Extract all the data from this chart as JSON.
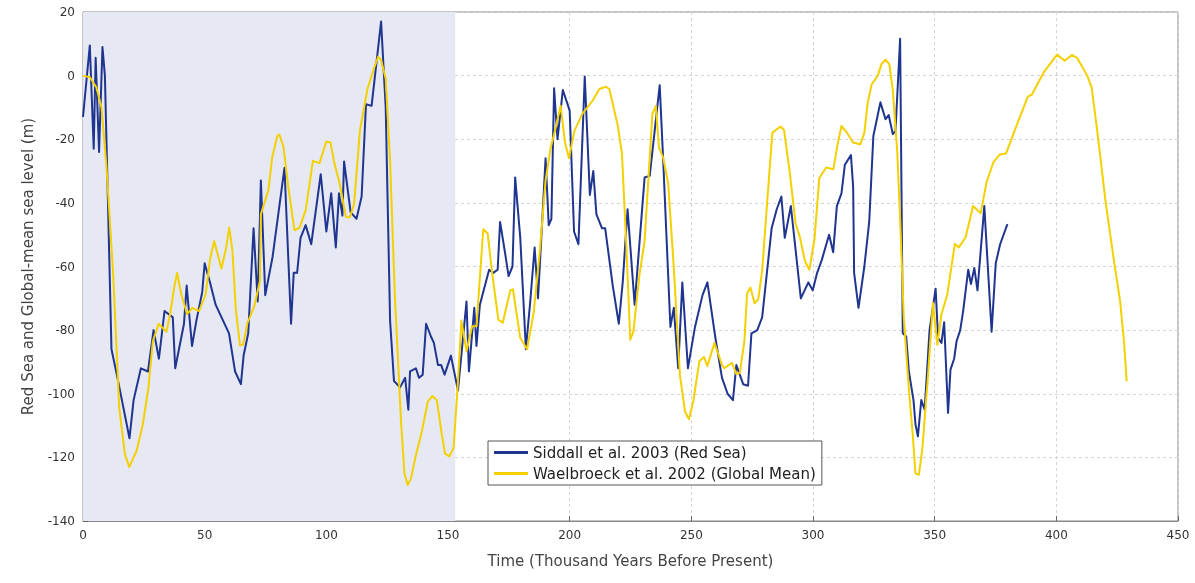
{
  "chart_data": {
    "type": "line",
    "xlabel": "Time (Thousand Years Before Present)",
    "ylabel": "Red Sea and Global-mean sea level (m)",
    "xlim": [
      0,
      450
    ],
    "xticks": [
      0,
      50,
      100,
      150,
      200,
      250,
      300,
      350,
      400,
      450
    ],
    "ylim": [
      -140,
      20
    ],
    "yticks": [
      -140,
      -120,
      -100,
      -80,
      -60,
      -40,
      -20,
      0,
      20
    ],
    "grid": true,
    "legend": "bottom",
    "marker": "none",
    "line_style": "solid",
    "bands": [
      {
        "axis": "x",
        "from": 0,
        "to": 153,
        "color": "#e6e9f3"
      }
    ],
    "series": [
      {
        "name": "Siddall et al. 2003 (Red Sea)",
        "color": "#1f3590",
        "x": [
          0,
          2.8,
          4.4,
          5.2,
          6.6,
          8,
          9,
          11.7,
          13.9,
          19.1,
          20.8,
          23.8,
          26.7,
          29,
          31.2,
          33.5,
          36.9,
          37.9,
          41.5,
          42.6,
          44.8,
          46.6,
          49,
          50,
          52.2,
          54.5,
          60,
          62.5,
          64.9,
          66,
          67.9,
          70.1,
          71.8,
          73.1,
          74.9,
          77.9,
          82.8,
          85.5,
          86.6,
          88,
          89.4,
          91.5,
          93.8,
          97.7,
          100,
          102,
          103.9,
          105.2,
          106.6,
          107.3,
          110,
          112.4,
          114.5,
          116.3,
          118.6,
          122.5,
          124.4,
          126.2,
          127.8,
          130.3,
          132.4,
          133.7,
          134.4,
          136.8,
          138.1,
          139.6,
          141,
          143,
          144.2,
          145.9,
          147.2,
          148.6,
          151.2,
          154.1,
          157.6,
          158.6,
          160.8,
          161.7,
          163.1,
          166.9,
          168.6,
          170.4,
          171.4,
          173.5,
          174.9,
          176.5,
          177.6,
          179.7,
          182,
          183.8,
          185.6,
          187,
          190.1,
          191.4,
          192.5,
          193.6,
          195,
          197.2,
          200,
          201.8,
          203.6,
          206.2,
          208.3,
          209.7,
          211,
          213.3,
          214.6,
          217.7,
          220.2,
          221.8,
          223.8,
          226.7,
          230.8,
          232.9,
          237,
          238.4,
          241.4,
          242.8,
          244.6,
          246.3,
          248.6,
          251.5,
          254.6,
          256.6,
          259.8,
          262.6,
          264.9,
          267.1,
          268.5,
          271.3,
          273.3,
          274.7,
          277.1,
          279.1,
          283,
          285.1,
          287,
          288.4,
          290.9,
          295,
          298.1,
          299.9,
          301.7,
          303.6,
          306.6,
          308.3,
          309.8,
          311.7,
          313.1,
          315.6,
          316.5,
          316.9,
          318.7,
          321.1,
          323.1,
          324.8,
          327.7,
          329.8,
          331.1,
          332.8,
          333.9,
          335.8,
          336.9,
          338.3,
          339.4,
          341.3,
          342.1,
          343.1,
          344.5,
          345.9,
          347.9,
          350.4,
          351.4,
          352.8,
          353.9,
          355.5,
          356.5,
          358,
          359,
          360.5,
          361.7,
          363.8,
          364.9,
          366.3,
          367.6,
          370.4,
          373.4,
          375.1,
          376.9,
          379.9
        ],
        "values": [
          -13,
          9.5,
          -23,
          5.6,
          -24,
          9,
          0,
          -86,
          -94,
          -114,
          -102,
          -92,
          -93,
          -80,
          -89,
          -74,
          -76,
          -92,
          -78,
          -66,
          -85,
          -77,
          -68,
          -59,
          -65,
          -72,
          -81,
          -93,
          -97,
          -88,
          -81,
          -48,
          -71,
          -33,
          -69,
          -57,
          -29,
          -78,
          -62,
          -62,
          -51,
          -47,
          -53,
          -31,
          -49,
          -37,
          -54,
          -37,
          -44,
          -27,
          -43,
          -45,
          -38,
          -9,
          -9.5,
          17,
          -10,
          -77,
          -96,
          -98,
          -95,
          -105,
          -93,
          -92,
          -95,
          -94,
          -78,
          -82,
          -84,
          -91,
          -91,
          -94,
          -88,
          -99,
          -71,
          -93,
          -73,
          -85,
          -72,
          -61,
          -62,
          -61,
          -46,
          -56,
          -63,
          -60,
          -32,
          -51,
          -86,
          -71,
          -54,
          -70,
          -26,
          -47,
          -45,
          -4,
          -20,
          -4.5,
          -11,
          -49,
          -53,
          -0.3,
          -37.5,
          -30,
          -43.6,
          -48,
          -48,
          -66,
          -78,
          -65,
          -42,
          -72,
          -32,
          -31.5,
          -3,
          -26,
          -79,
          -73,
          -92,
          -65,
          -92,
          -79,
          -69,
          -65,
          -82,
          -95,
          -100,
          -102,
          -91,
          -97,
          -97.5,
          -81,
          -80,
          -76,
          -48,
          -42,
          -38,
          -51,
          -41,
          -70,
          -65,
          -67.5,
          -62,
          -58,
          -50,
          -55.5,
          -41,
          -37,
          -28,
          -25,
          -35,
          -62,
          -73,
          -60,
          -46,
          -19,
          -8.4,
          -13.7,
          -12.4,
          -18.4,
          -17.4,
          11.6,
          -81,
          -82,
          -93,
          -102,
          -109.5,
          -113.4,
          -102,
          -105,
          -80,
          -67,
          -82.5,
          -84,
          -77.5,
          -106,
          -92.4,
          -89,
          -83.5,
          -80,
          -74,
          -61,
          -65.5,
          -60.5,
          -67.5,
          -41,
          -80.5,
          -59,
          -53,
          -46.7
        ]
      },
      {
        "name": "Waelbroeck et al. 2002 (Global Mean)",
        "color": "#f5d000",
        "x": [
          0,
          2.8,
          5.5,
          7.6,
          9.6,
          12.4,
          14.9,
          17.2,
          19,
          22,
          24.5,
          26.9,
          28.7,
          31.1,
          34.3,
          35.9,
          37.6,
          38.7,
          40.4,
          42.8,
          44.9,
          47.7,
          50.4,
          52.2,
          53.9,
          56.9,
          58.7,
          60.1,
          61.4,
          62.8,
          64.5,
          65.8,
          67.6,
          70.4,
          72.7,
          73.1,
          76.2,
          77.7,
          79.8,
          80.7,
          82.4,
          84.2,
          86.9,
          89,
          91.5,
          94.5,
          97.2,
          100,
          101.7,
          103.4,
          105.5,
          108,
          109.6,
          111.4,
          113.8,
          116.9,
          119.3,
          121.3,
          122.5,
          124.4,
          126.2,
          128.2,
          130.7,
          132.1,
          133.4,
          134.8,
          136.5,
          139.2,
          141.7,
          143.6,
          145.4,
          147.5,
          148.8,
          150.5,
          152.3,
          154.1,
          155.5,
          157.6,
          159.9,
          161.7,
          164.5,
          166.3,
          168.2,
          170.7,
          172.5,
          175.6,
          176.7,
          179.7,
          182.5,
          185.2,
          187.6,
          190.1,
          192.1,
          193.9,
          196.3,
          198.1,
          199.7,
          202,
          205.2,
          209.4,
          212.2,
          214.9,
          216.3,
          219.8,
          221.5,
          223.2,
          224.9,
          226.2,
          228.7,
          230.8,
          234,
          235.4,
          236.7,
          238.4,
          240.5,
          242.8,
          245.3,
          247.4,
          249,
          250.8,
          253.3,
          255.2,
          256.6,
          259.5,
          262.6,
          263.5,
          266.7,
          268.5,
          269.9,
          271.8,
          272.9,
          274.3,
          276,
          277.5,
          279.1,
          281.2,
          283.3,
          286.7,
          288.1,
          290.2,
          292.9,
          294.6,
          296.7,
          298.5,
          300.6,
          302.6,
          305.4,
          308.4,
          310,
          311.7,
          313.9,
          316.5,
          319.4,
          321.1,
          322.5,
          324.1,
          326.6,
          328.2,
          329.8,
          331.4,
          332.8,
          334.6,
          335.9,
          337.3,
          339.3,
          341,
          342.1,
          343.5,
          344.9,
          347.2,
          349.3,
          351.1,
          352.8,
          355.2,
          358.3,
          359.9,
          362.7,
          365.8,
          368.9,
          371.3,
          374.1,
          376.6,
          379.3,
          383.5,
          388.3,
          389.9,
          394.8,
          400.3,
          403.4,
          406.4,
          408.5,
          412.7,
          414.5,
          416.8,
          420.2,
          423.7,
          426.2,
          427.8,
          428.9
        ],
        "values": [
          0,
          -0.5,
          -3.7,
          -10,
          -28,
          -62.5,
          -104.5,
          -119,
          -123,
          -118,
          -110,
          -98,
          -83.5,
          -78,
          -80.5,
          -74.5,
          -66,
          -62,
          -68.8,
          -75,
          -73,
          -74,
          -68.8,
          -57.8,
          -52,
          -60.6,
          -54.6,
          -47.8,
          -55,
          -73.5,
          -84.8,
          -84.5,
          -77.7,
          -72.5,
          -64.6,
          -43.6,
          -36,
          -26,
          -19,
          -18.5,
          -22.4,
          -34,
          -48.6,
          -47.8,
          -42.3,
          -26.8,
          -27.5,
          -20.7,
          -21,
          -27.8,
          -34,
          -44.4,
          -44.6,
          -40.4,
          -17.3,
          -4.2,
          1.6,
          6,
          4.9,
          -1,
          -26.8,
          -70,
          -108.7,
          -125,
          -128.7,
          -126.6,
          -120.3,
          -112,
          -102.5,
          -100.7,
          -102,
          -113,
          -118.8,
          -119.7,
          -117,
          -96,
          -77,
          -86.6,
          -78.8,
          -78.8,
          -48.3,
          -49.6,
          -62.5,
          -76.7,
          -77.7,
          -67.5,
          -67.2,
          -82.5,
          -86,
          -74.6,
          -56.2,
          -33,
          -23,
          -17.5,
          -9.5,
          -21,
          -26,
          -17.3,
          -12,
          -7.9,
          -4.2,
          -3.5,
          -4.2,
          -15.8,
          -24.7,
          -52,
          -83,
          -80.5,
          -62.5,
          -52,
          -12,
          -9.5,
          -22.6,
          -25.7,
          -34,
          -60.4,
          -94,
          -105.6,
          -108,
          -102.4,
          -89.8,
          -88.4,
          -91.3,
          -84,
          -90.9,
          -92,
          -90.3,
          -93.8,
          -93.5,
          -83.5,
          -68.5,
          -66.6,
          -71.6,
          -70.3,
          -61.4,
          -39.4,
          -17.9,
          -16,
          -17.1,
          -28.9,
          -46.7,
          -50.7,
          -58.3,
          -61,
          -51.5,
          -32.2,
          -28.9,
          -29.4,
          -22,
          -15.8,
          -17.9,
          -21,
          -21.6,
          -17.9,
          -8.4,
          -2.8,
          0,
          3.7,
          5,
          3.5,
          -4.7,
          -23.6,
          -46.7,
          -76,
          -97.7,
          -113,
          -125,
          -125.5,
          -117.6,
          -95,
          -71.4,
          -84.6,
          -75,
          -68.7,
          -52.9,
          -54,
          -50.9,
          -41,
          -43.3,
          -33.6,
          -27.3,
          -24.9,
          -24.5,
          -16,
          -6.6,
          -6,
          1,
          6.6,
          4.7,
          6.5,
          5.6,
          0,
          -3.7,
          -17.3,
          -39.4,
          -58.3,
          -70.9,
          -83.5,
          -96.1
        ]
      }
    ]
  }
}
